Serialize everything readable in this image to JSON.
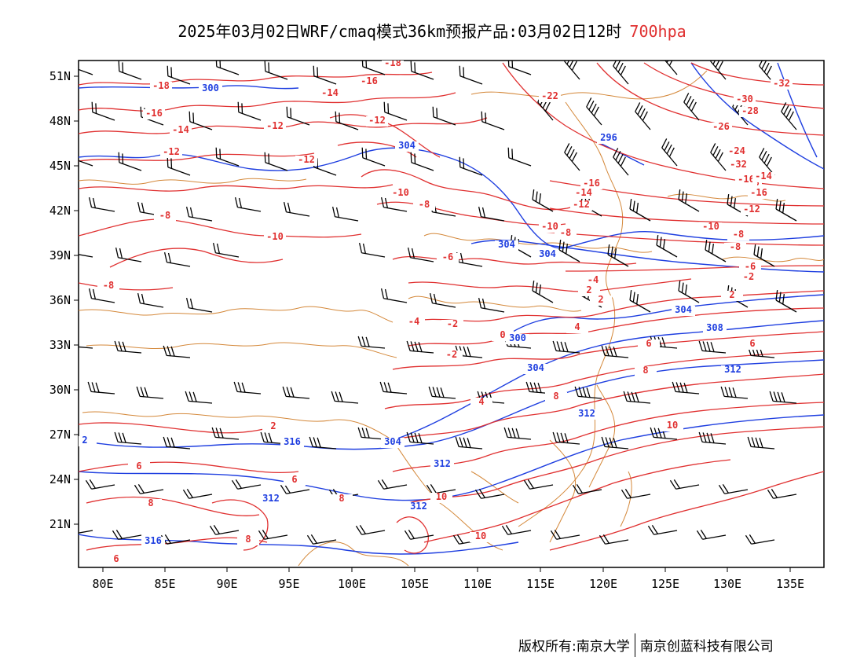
{
  "header": {
    "title": "2025年03月02日WRF/cmaq模式36km预报产品:03月02日12时",
    "level": "700hpa"
  },
  "footer": {
    "owner": "版权所有:南京大学",
    "partner": "南京创蓝科技有限公司"
  },
  "colors": {
    "temperature_contour": "#e03030",
    "geopotential_contour": "#1f3fe0",
    "wind_barb": "#000000",
    "border": "#d4883a"
  },
  "map": {
    "lon_range": [
      78,
      138
    ],
    "lat_range": [
      18,
      52
    ],
    "lon_ticks": [
      "80E",
      "85E",
      "90E",
      "95E",
      "100E",
      "105E",
      "110E",
      "115E",
      "120E",
      "125E",
      "130E",
      "135E"
    ],
    "lat_ticks": [
      "51N",
      "48N",
      "45N",
      "42N",
      "39N",
      "36N",
      "33N",
      "30N",
      "27N",
      "24N",
      "21N"
    ],
    "temperature_labels": [
      "-18",
      "-16",
      "-14",
      "-12",
      "-10",
      "-8",
      "-6",
      "-4",
      "-2",
      "0",
      "2",
      "4",
      "6",
      "8",
      "10",
      "-22",
      "-26",
      "-28",
      "-30",
      "-32",
      "-24"
    ],
    "height_labels": [
      "296",
      "300",
      "304",
      "308",
      "312",
      "316"
    ]
  }
}
